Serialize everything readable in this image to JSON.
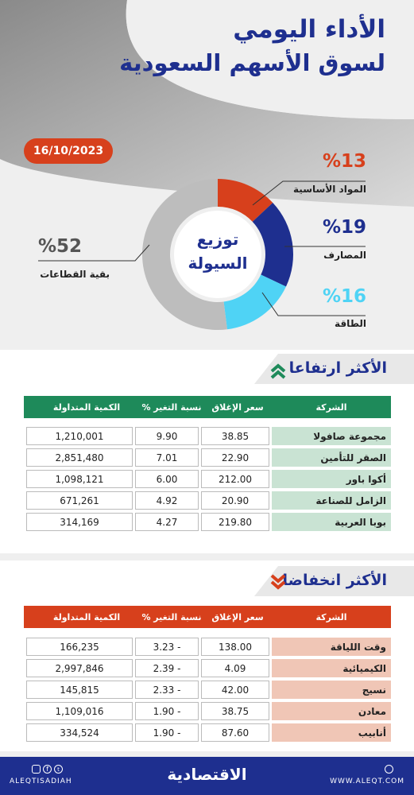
{
  "header": {
    "title_line1": "الأداء اليومي",
    "title_line2": "لسوق الأسهم السعودية",
    "date": "16/10/2023"
  },
  "liquidity": {
    "center_line1": "توزيع",
    "center_line2": "السيولة",
    "segments": [
      {
        "pct": "%13",
        "label": "المواد الأساسية",
        "value": 13,
        "color": "#d7401c"
      },
      {
        "pct": "%19",
        "label": "المصارف",
        "value": 19,
        "color": "#1e2f8f"
      },
      {
        "pct": "%16",
        "label": "الطاقة",
        "value": 16,
        "color": "#4fd3f5"
      },
      {
        "pct": "%52",
        "label": "بقية القطاعات",
        "value": 52,
        "color": "#bdbdbd"
      }
    ]
  },
  "gainers": {
    "title": "الأكثر ارتفاعا",
    "header_color": "#1e8a5a",
    "columns": [
      "الشركة",
      "سعر الإغلاق",
      "نسبة التغير %",
      "الكمية المتداولة"
    ],
    "rows": [
      [
        "مجموعة صافولا",
        "38.85",
        "9.90",
        "1,210,001"
      ],
      [
        "الصقر للتأمين",
        "22.90",
        "7.01",
        "2,851,480"
      ],
      [
        "أكوا باور",
        "212.00",
        "6.00",
        "1,098,121"
      ],
      [
        "الزامل للصناعة",
        "20.90",
        "4.92",
        "671,261"
      ],
      [
        "بوبا العربية",
        "219.80",
        "4.27",
        "314,169"
      ]
    ]
  },
  "losers": {
    "title": "الأكثر انخفاضا",
    "header_color": "#d7401c",
    "columns": [
      "الشركة",
      "سعر الإغلاق",
      "نسبة التغير %",
      "الكمية المتداولة"
    ],
    "rows": [
      [
        "وقت اللياقة",
        "138.00",
        "- 3.23",
        "166,235"
      ],
      [
        "الكيميائية",
        "4.09",
        "- 2.39",
        "2,997,846"
      ],
      [
        "نسيج",
        "42.00",
        "- 2.33",
        "145,815"
      ],
      [
        "معادن",
        "38.75",
        "- 1.90",
        "1,109,016"
      ],
      [
        "أنابيب",
        "87.60",
        "- 1.90",
        "334,524"
      ]
    ]
  },
  "footer": {
    "handle": "ALEQTISADIAH",
    "brand": "الاقتصادية",
    "website": "WWW.ALEQT.COM"
  }
}
